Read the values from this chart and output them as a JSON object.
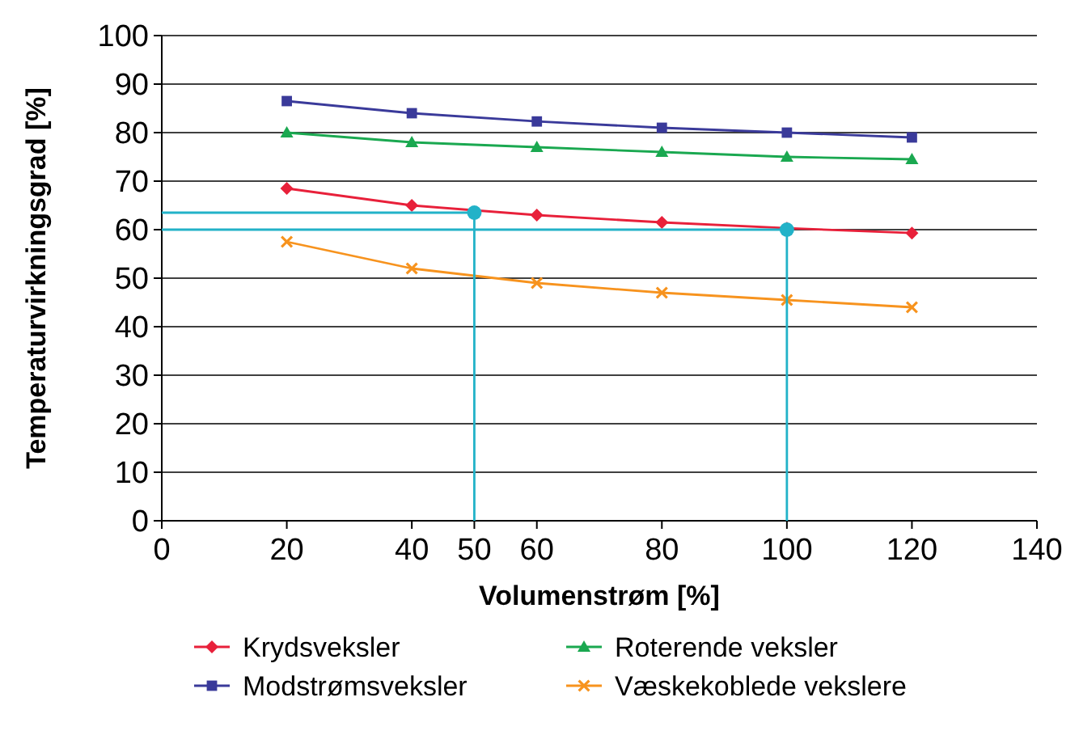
{
  "chart_data": {
    "type": "line",
    "xlabel": "Volumenstrøm [%]",
    "ylabel": "Temperaturvirkningsgrad [%]",
    "xlim": [
      0,
      140
    ],
    "xticks": [
      0,
      20,
      40,
      50,
      60,
      80,
      100,
      120,
      140
    ],
    "ylim": [
      0,
      100
    ],
    "yticks": [
      0,
      10,
      20,
      30,
      40,
      50,
      60,
      70,
      80,
      90,
      100
    ],
    "grid": "y",
    "legend": "bottom",
    "line_style": "solid",
    "series": [
      {
        "name": "Krydsveksler",
        "color": "#e8203a",
        "marker": "diamond",
        "x": [
          20,
          40,
          60,
          80,
          100,
          120
        ],
        "values": [
          68.5,
          65,
          63,
          61.5,
          60.3,
          59.3
        ]
      },
      {
        "name": "Modstrømsveksler",
        "color": "#3a3a9a",
        "marker": "square",
        "x": [
          20,
          40,
          60,
          80,
          100,
          120
        ],
        "values": [
          86.5,
          84,
          82.3,
          81,
          80,
          79
        ]
      },
      {
        "name": "Roterende veksler",
        "color": "#1aa850",
        "marker": "triangle",
        "x": [
          20,
          40,
          60,
          80,
          100,
          120
        ],
        "values": [
          80,
          78,
          77,
          76,
          75,
          74.5
        ]
      },
      {
        "name": "Væskekoblede vekslere",
        "color": "#f7931e",
        "marker": "cross",
        "x": [
          20,
          40,
          60,
          80,
          100,
          120
        ],
        "values": [
          57.5,
          52,
          49,
          47,
          45.5,
          44
        ]
      },
      {
        "type": "line",
        "color": "#22b2c8",
        "marker": "none",
        "x": [
          0,
          50,
          50
        ],
        "values": [
          63.5,
          63.5,
          0
        ]
      },
      {
        "type": "line",
        "color": "#22b2c8",
        "marker": "none",
        "x": [
          0,
          100,
          100
        ],
        "values": [
          60,
          60,
          0
        ]
      },
      {
        "type": "scatter",
        "color": "#22b2c8",
        "marker": "circle",
        "x": [
          50,
          100
        ],
        "values": [
          63.5,
          60
        ]
      }
    ]
  }
}
